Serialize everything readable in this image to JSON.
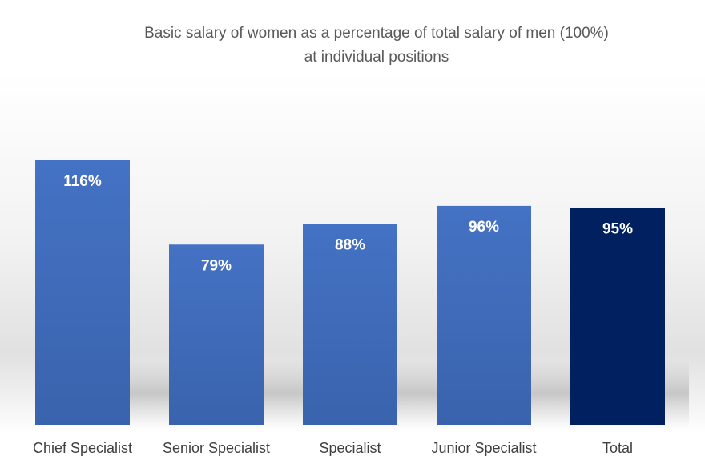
{
  "chart_data": {
    "type": "bar",
    "title_line1": "Basic salary of women as a percentage of total salary of men (100%)",
    "title_line2": "at individual positions",
    "categories": [
      "Chief Specialist",
      "Senior Specialist",
      "Specialist",
      "Junior Specialist",
      "Total"
    ],
    "values": [
      116,
      79,
      88,
      96,
      95
    ],
    "data_labels": [
      "116%",
      "79%",
      "88%",
      "96%",
      "95%"
    ],
    "unit": "%",
    "grid": false,
    "legend": "none",
    "colors": {
      "bar": "#4472C4",
      "bar_dark": "#3A63AD",
      "highlight_bar": "#002060",
      "label_text": "#FFFFFF",
      "axis_text": "#404040",
      "title_text": "#595959"
    },
    "highlight_category": "Total"
  }
}
